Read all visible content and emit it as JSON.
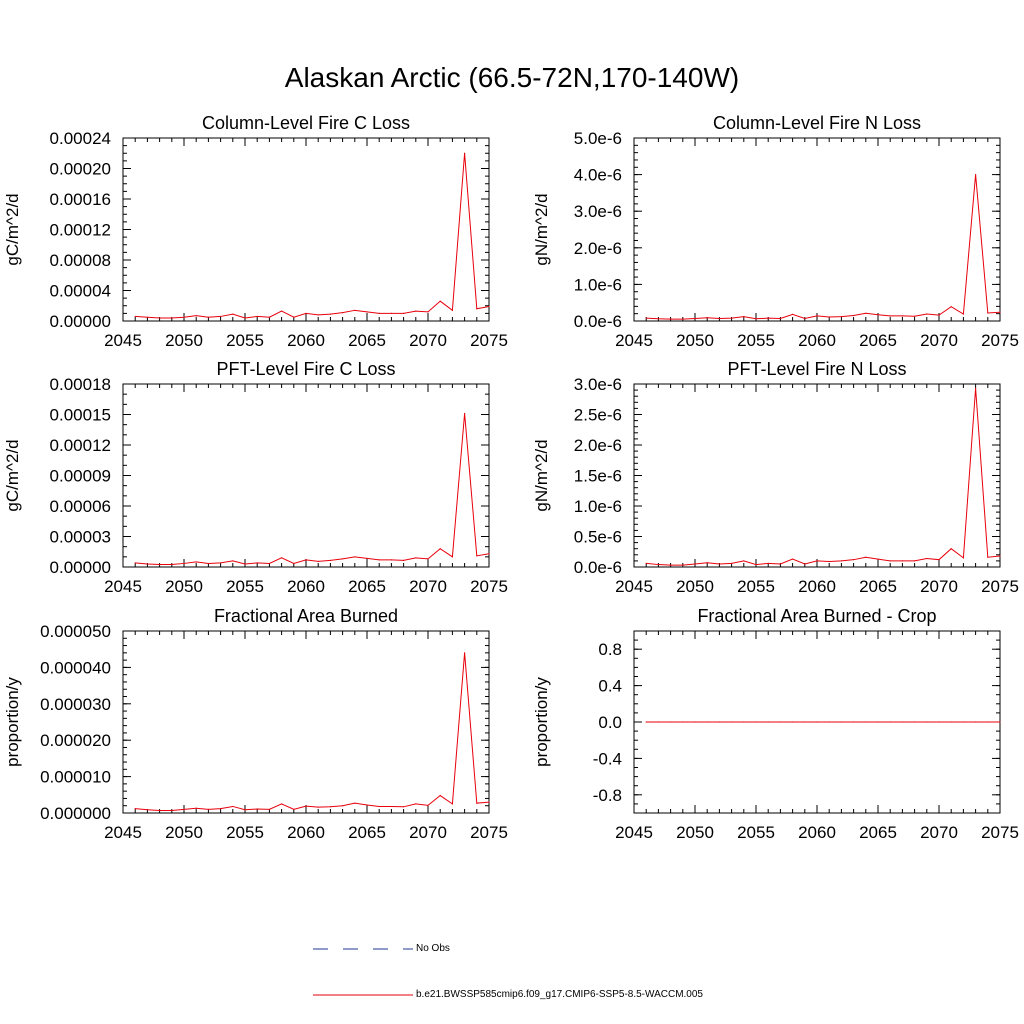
{
  "page": {
    "title": "Alaskan Arctic (66.5-72N,170-140W)"
  },
  "colors": {
    "model": "#e8000b",
    "obs": "#1f3a93",
    "axis": "#000000"
  },
  "chart_data": [
    {
      "type": "line",
      "title": "Column-Level Fire C Loss",
      "ylabel": "gC/m^2/d",
      "xlim": [
        2045,
        2075
      ],
      "ylim": [
        0,
        0.00024
      ],
      "xticks": [
        2045,
        2050,
        2055,
        2060,
        2065,
        2070,
        2075
      ],
      "xtick_labels": [
        "2045",
        "2050",
        "2055",
        "2060",
        "2065",
        "2070",
        "2075"
      ],
      "yticks": [
        0,
        4e-05,
        8e-05,
        0.00012,
        0.00016,
        0.0002,
        0.00024
      ],
      "ytick_labels": [
        "0.00000",
        "0.00004",
        "0.00008",
        "0.00012",
        "0.00016",
        "0.00020",
        "0.00024"
      ],
      "yminor_step": 1e-05,
      "series": [
        {
          "name": "b.e21.BWSSP585cmip6.f09_g17.CMIP6-SSP5-8.5-WACCM.005",
          "x": [
            2046,
            2047,
            2048,
            2049,
            2050,
            2051,
            2052,
            2053,
            2054,
            2055,
            2056,
            2057,
            2058,
            2059,
            2060,
            2061,
            2062,
            2063,
            2064,
            2065,
            2066,
            2067,
            2068,
            2069,
            2070,
            2071,
            2072,
            2073,
            2074,
            2075
          ],
          "y": [
            6e-06,
            5e-06,
            4e-06,
            4e-06,
            5e-06,
            7e-06,
            5e-06,
            6e-06,
            9e-06,
            4e-06,
            6e-06,
            5e-06,
            1.3e-05,
            5e-06,
            1e-05,
            8e-06,
            9e-06,
            1.1e-05,
            1.4e-05,
            1.2e-05,
            1e-05,
            1e-05,
            1e-05,
            1.3e-05,
            1.2e-05,
            2.6e-05,
            1.4e-05,
            0.00022,
            1.6e-05,
            1.9e-05
          ]
        }
      ]
    },
    {
      "type": "line",
      "title": "Column-Level Fire N Loss",
      "ylabel": "gN/m^2/d",
      "xlim": [
        2045,
        2075
      ],
      "ylim": [
        0,
        5e-06
      ],
      "xticks": [
        2045,
        2050,
        2055,
        2060,
        2065,
        2070,
        2075
      ],
      "xtick_labels": [
        "2045",
        "2050",
        "2055",
        "2060",
        "2065",
        "2070",
        "2075"
      ],
      "yticks": [
        0,
        1e-06,
        2e-06,
        3e-06,
        4e-06,
        5e-06
      ],
      "ytick_labels": [
        "0.0e-6",
        "1.0e-6",
        "2.0e-6",
        "3.0e-6",
        "4.0e-6",
        "5.0e-6"
      ],
      "yminor_step": 2e-07,
      "series": [
        {
          "name": "b.e21.BWSSP585cmip6.f09_g17.CMIP6-SSP5-8.5-WACCM.005",
          "x": [
            2046,
            2047,
            2048,
            2049,
            2050,
            2051,
            2052,
            2053,
            2054,
            2055,
            2056,
            2057,
            2058,
            2059,
            2060,
            2061,
            2062,
            2063,
            2064,
            2065,
            2066,
            2067,
            2068,
            2069,
            2070,
            2071,
            2072,
            2073,
            2074,
            2075
          ],
          "y": [
            8e-08,
            6e-08,
            5e-08,
            5e-08,
            7e-08,
            9e-08,
            7e-08,
            8e-08,
            1.2e-07,
            6e-08,
            8e-08,
            7e-08,
            1.8e-07,
            7e-08,
            1.4e-07,
            1.1e-07,
            1.2e-07,
            1.5e-07,
            2.1e-07,
            1.7e-07,
            1.4e-07,
            1.4e-07,
            1.3e-07,
            1.9e-07,
            1.6e-07,
            3.9e-07,
            1.9e-07,
            4e-06,
            2.2e-07,
            2.4e-07
          ]
        }
      ]
    },
    {
      "type": "line",
      "title": "PFT-Level Fire C Loss",
      "ylabel": "gC/m^2/d",
      "xlim": [
        2045,
        2075
      ],
      "ylim": [
        0,
        0.00018
      ],
      "xticks": [
        2045,
        2050,
        2055,
        2060,
        2065,
        2070,
        2075
      ],
      "xtick_labels": [
        "2045",
        "2050",
        "2055",
        "2060",
        "2065",
        "2070",
        "2075"
      ],
      "yticks": [
        0,
        3e-05,
        6e-05,
        9e-05,
        0.00012,
        0.00015,
        0.00018
      ],
      "ytick_labels": [
        "0.00000",
        "0.00003",
        "0.00006",
        "0.00009",
        "0.00012",
        "0.00015",
        "0.00018"
      ],
      "yminor_step": 1e-05,
      "series": [
        {
          "name": "b.e21.BWSSP585cmip6.f09_g17.CMIP6-SSP5-8.5-WACCM.005",
          "x": [
            2046,
            2047,
            2048,
            2049,
            2050,
            2051,
            2052,
            2053,
            2054,
            2055,
            2056,
            2057,
            2058,
            2059,
            2060,
            2061,
            2062,
            2063,
            2064,
            2065,
            2066,
            2067,
            2068,
            2069,
            2070,
            2071,
            2072,
            2073,
            2074,
            2075
          ],
          "y": [
            4e-06,
            3e-06,
            2.5e-06,
            2.5e-06,
            3.5e-06,
            5e-06,
            3.5e-06,
            4e-06,
            6e-06,
            3e-06,
            4e-06,
            3.5e-06,
            9e-06,
            3.5e-06,
            7e-06,
            5.5e-06,
            6.5e-06,
            8e-06,
            1e-05,
            8.5e-06,
            7e-06,
            7e-06,
            6.5e-06,
            9e-06,
            8e-06,
            1.8e-05,
            1e-05,
            0.000151,
            1.1e-05,
            1.3e-05
          ]
        }
      ]
    },
    {
      "type": "line",
      "title": "PFT-Level Fire N Loss",
      "ylabel": "gN/m^2/d",
      "xlim": [
        2045,
        2075
      ],
      "ylim": [
        0,
        3e-06
      ],
      "xticks": [
        2045,
        2050,
        2055,
        2060,
        2065,
        2070,
        2075
      ],
      "xtick_labels": [
        "2045",
        "2050",
        "2055",
        "2060",
        "2065",
        "2070",
        "2075"
      ],
      "yticks": [
        0,
        5e-07,
        1e-06,
        1.5e-06,
        2e-06,
        2.5e-06,
        3e-06
      ],
      "ytick_labels": [
        "0.0e-6",
        "0.5e-6",
        "1.0e-6",
        "1.5e-6",
        "2.0e-6",
        "2.5e-6",
        "3.0e-6"
      ],
      "yminor_step": 1e-07,
      "series": [
        {
          "name": "b.e21.BWSSP585cmip6.f09_g17.CMIP6-SSP5-8.5-WACCM.005",
          "x": [
            2046,
            2047,
            2048,
            2049,
            2050,
            2051,
            2052,
            2053,
            2054,
            2055,
            2056,
            2057,
            2058,
            2059,
            2060,
            2061,
            2062,
            2063,
            2064,
            2065,
            2066,
            2067,
            2068,
            2069,
            2070,
            2071,
            2072,
            2073,
            2074,
            2075
          ],
          "y": [
            6e-08,
            4e-08,
            3e-08,
            3e-08,
            5e-08,
            7e-08,
            5e-08,
            6e-08,
            1e-07,
            4e-08,
            6e-08,
            5e-08,
            1.3e-07,
            5e-08,
            1e-07,
            9e-08,
            1e-07,
            1.2e-07,
            1.6e-07,
            1.3e-07,
            1e-07,
            1e-07,
            1e-07,
            1.4e-07,
            1.2e-07,
            3e-07,
            1.5e-07,
            2.93e-06,
            1.6e-07,
            1.8e-07
          ]
        }
      ]
    },
    {
      "type": "line",
      "title": "Fractional Area Burned",
      "ylabel": "proportion/y",
      "xlim": [
        2045,
        2075
      ],
      "ylim": [
        0,
        5e-05
      ],
      "xticks": [
        2045,
        2050,
        2055,
        2060,
        2065,
        2070,
        2075
      ],
      "xtick_labels": [
        "2045",
        "2050",
        "2055",
        "2060",
        "2065",
        "2070",
        "2075"
      ],
      "yticks": [
        0,
        1e-05,
        2e-05,
        3e-05,
        4e-05,
        5e-05
      ],
      "ytick_labels": [
        "0.000000",
        "0.000010",
        "0.000020",
        "0.000030",
        "0.000040",
        "0.000050"
      ],
      "yminor_step": 2e-06,
      "series": [
        {
          "name": "b.e21.BWSSP585cmip6.f09_g17.CMIP6-SSP5-8.5-WACCM.005",
          "x": [
            2046,
            2047,
            2048,
            2049,
            2050,
            2051,
            2052,
            2053,
            2054,
            2055,
            2056,
            2057,
            2058,
            2059,
            2060,
            2061,
            2062,
            2063,
            2064,
            2065,
            2066,
            2067,
            2068,
            2069,
            2070,
            2071,
            2072,
            2073,
            2074,
            2075
          ],
          "y": [
            1.2e-06,
            9e-07,
            7e-07,
            7e-07,
            1e-06,
            1.3e-06,
            1e-06,
            1.2e-06,
            1.8e-06,
            9e-07,
            1.1e-06,
            1e-06,
            2.5e-06,
            1e-06,
            1.9e-06,
            1.6e-06,
            1.7e-06,
            2e-06,
            2.7e-06,
            2.2e-06,
            1.8e-06,
            1.8e-06,
            1.7e-06,
            2.5e-06,
            2.1e-06,
            4.8e-06,
            2.5e-06,
            4.4e-05,
            2.7e-06,
            3e-06
          ]
        }
      ]
    },
    {
      "type": "line",
      "title": "Fractional Area Burned - Crop",
      "ylabel": "proportion/y",
      "xlim": [
        2045,
        2075
      ],
      "ylim": [
        -1,
        1
      ],
      "xticks": [
        2045,
        2050,
        2055,
        2060,
        2065,
        2070,
        2075
      ],
      "xtick_labels": [
        "2045",
        "2050",
        "2055",
        "2060",
        "2065",
        "2070",
        "2075"
      ],
      "yticks": [
        -0.8,
        -0.4,
        0,
        0.4,
        0.8
      ],
      "ytick_labels": [
        "-0.8",
        "-0.4",
        "0.0",
        "0.4",
        "0.8"
      ],
      "yminor_step": 0.1,
      "series": [
        {
          "name": "b.e21.BWSSP585cmip6.f09_g17.CMIP6-SSP5-8.5-WACCM.005",
          "x": [
            2046,
            2047,
            2048,
            2049,
            2050,
            2051,
            2052,
            2053,
            2054,
            2055,
            2056,
            2057,
            2058,
            2059,
            2060,
            2061,
            2062,
            2063,
            2064,
            2065,
            2066,
            2067,
            2068,
            2069,
            2070,
            2071,
            2072,
            2073,
            2074,
            2075
          ],
          "y": [
            0,
            0,
            0,
            0,
            0,
            0,
            0,
            0,
            0,
            0,
            0,
            0,
            0,
            0,
            0,
            0,
            0,
            0,
            0,
            0,
            0,
            0,
            0,
            0,
            0,
            0,
            0,
            0,
            0,
            0
          ]
        }
      ]
    }
  ],
  "legend": {
    "entries": [
      {
        "label": "No Obs",
        "style": "dashed",
        "color": "#1f3a93"
      },
      {
        "label": "b.e21.BWSSP585cmip6.f09_g17.CMIP6-SSP5-8.5-WACCM.005",
        "style": "solid",
        "color": "#e8000b"
      }
    ]
  }
}
